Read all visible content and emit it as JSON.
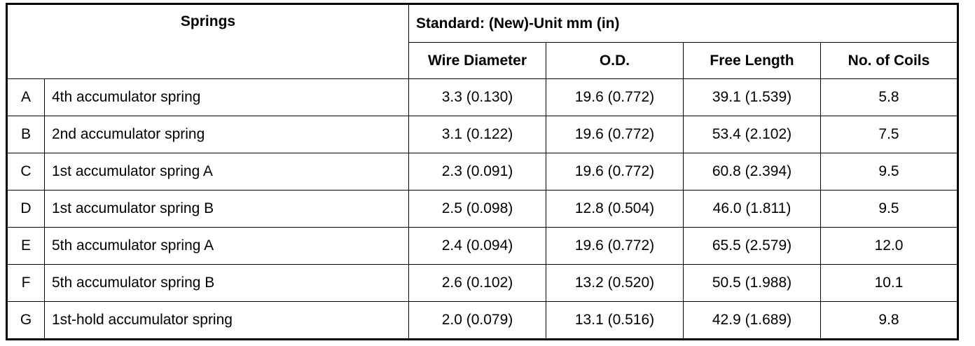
{
  "header": {
    "springs": "Springs",
    "standard": "Standard: (New)-Unit mm (in)",
    "columns": [
      "Wire Diameter",
      "O.D.",
      "Free Length",
      "No. of Coils"
    ]
  },
  "table": {
    "rows": [
      [
        "A",
        "4th accumulator spring",
        "3.3 (0.130)",
        "19.6 (0.772)",
        "39.1 (1.539)",
        "5.8"
      ],
      [
        "B",
        "2nd accumulator spring",
        "3.1 (0.122)",
        "19.6 (0.772)",
        "53.4 (2.102)",
        "7.5"
      ],
      [
        "C",
        "1st accumulator spring A",
        "2.3 (0.091)",
        "19.6 (0.772)",
        "60.8 (2.394)",
        "9.5"
      ],
      [
        "D",
        "1st accumulator spring B",
        "2.5 (0.098)",
        "12.8 (0.504)",
        "46.0 (1.811)",
        "9.5"
      ],
      [
        "E",
        "5th accumulator spring A",
        "2.4 (0.094)",
        "19.6 (0.772)",
        "65.5 (2.579)",
        "12.0"
      ],
      [
        "F",
        "5th accumulator spring B",
        "2.6 (0.102)",
        "13.2 (0.520)",
        "50.5 (1.988)",
        "10.1"
      ],
      [
        "G",
        "1st-hold accumulator spring",
        "2.0 (0.079)",
        "13.1 (0.516)",
        "42.9 (1.689)",
        "9.8"
      ]
    ]
  }
}
